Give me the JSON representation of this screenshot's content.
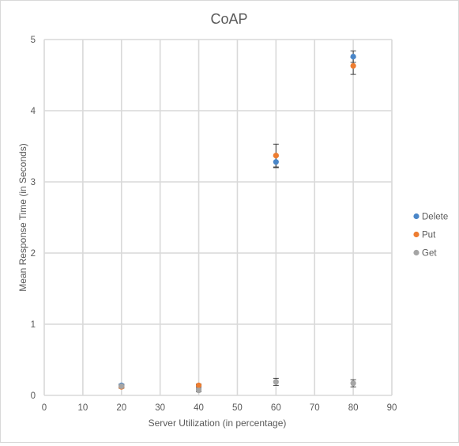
{
  "chart_data": {
    "type": "scatter",
    "title": "CoAP",
    "xlabel": "Server Utilization (in percentage)",
    "ylabel": "Mean Response Time (in Seconds)",
    "xlim": [
      0,
      90
    ],
    "ylim": [
      0,
      5
    ],
    "x_ticks": [
      0,
      10,
      20,
      30,
      40,
      50,
      60,
      70,
      80,
      90
    ],
    "y_ticks": [
      0,
      1,
      2,
      3,
      4,
      5
    ],
    "grid": "both",
    "legend_position": "right",
    "error_bars": true,
    "series": [
      {
        "name": "Delete",
        "color": "#4a86c8",
        "points": [
          {
            "x": 20,
            "y": 0.14,
            "err": 0.02
          },
          {
            "x": 40,
            "y": 0.13,
            "err": 0.02
          },
          {
            "x": 60,
            "y": 3.28,
            "err": 0.08
          },
          {
            "x": 80,
            "y": 4.76,
            "err": 0.08
          }
        ]
      },
      {
        "name": "Put",
        "color": "#ed7d31",
        "points": [
          {
            "x": 20,
            "y": 0.12,
            "err": 0.02
          },
          {
            "x": 40,
            "y": 0.14,
            "err": 0.02
          },
          {
            "x": 60,
            "y": 3.37,
            "err": 0.16
          },
          {
            "x": 80,
            "y": 4.63,
            "err": 0.12
          }
        ]
      },
      {
        "name": "Get",
        "color": "#a5a5a5",
        "points": [
          {
            "x": 20,
            "y": 0.13,
            "err": 0.02
          },
          {
            "x": 40,
            "y": 0.07,
            "err": 0.02
          },
          {
            "x": 60,
            "y": 0.19,
            "err": 0.05
          },
          {
            "x": 80,
            "y": 0.17,
            "err": 0.05
          }
        ]
      }
    ]
  }
}
